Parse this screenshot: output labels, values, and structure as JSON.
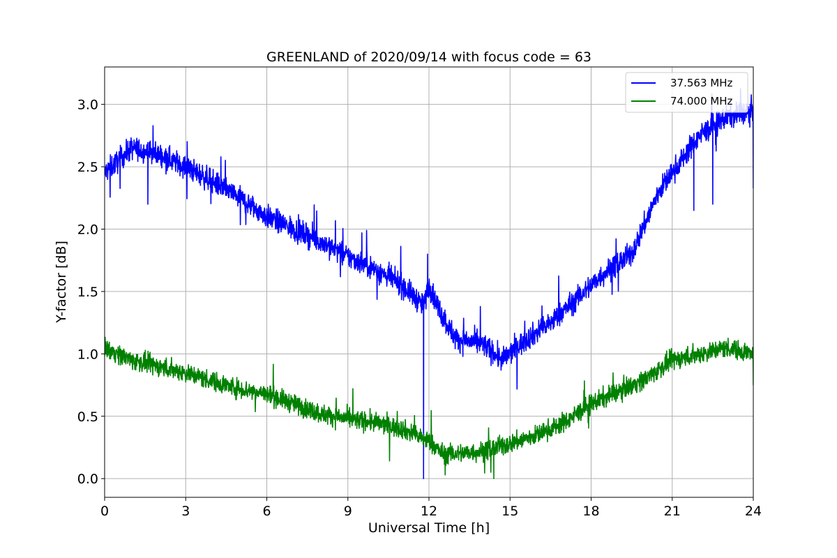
{
  "chart_data": {
    "type": "line",
    "title": "GREENLAND of 2020/09/14 with focus code = 63",
    "xlabel": "Universal Time [h]",
    "ylabel": "Y-factor [dB]",
    "xlim": [
      0,
      24
    ],
    "ylim": [
      -0.15,
      3.3
    ],
    "xticks": [
      0,
      3,
      6,
      9,
      12,
      15,
      18,
      21,
      24
    ],
    "xtick_labels": [
      "0",
      "3",
      "6",
      "9",
      "12",
      "15",
      "18",
      "21",
      "24"
    ],
    "yticks": [
      0.0,
      0.5,
      1.0,
      1.5,
      2.0,
      2.5,
      3.0
    ],
    "ytick_labels": [
      "0.0",
      "0.5",
      "1.0",
      "1.5",
      "2.0",
      "2.5",
      "3.0"
    ],
    "grid": true,
    "legend_position": "top-right",
    "series": [
      {
        "name": "37.563 MHz",
        "color": "#0000ff",
        "noise": 0.09,
        "x": [
          0,
          0.5,
          1.0,
          2.0,
          3.0,
          4.0,
          5.0,
          6.0,
          7.0,
          8.0,
          9.0,
          10.0,
          11.0,
          11.5,
          11.8,
          12.0,
          12.5,
          13.0,
          14.0,
          14.7,
          15.5,
          16.5,
          17.5,
          18.5,
          19.5,
          20.0,
          20.5,
          21.0,
          22.0,
          23.0,
          24.0
        ],
        "y": [
          2.45,
          2.55,
          2.65,
          2.6,
          2.5,
          2.38,
          2.25,
          2.1,
          2.0,
          1.9,
          1.78,
          1.68,
          1.55,
          1.45,
          1.38,
          1.55,
          1.3,
          1.12,
          1.08,
          0.95,
          1.1,
          1.25,
          1.45,
          1.65,
          1.8,
          2.05,
          2.3,
          2.45,
          2.75,
          2.9,
          2.95
        ],
        "features": [
          {
            "x": 11.8,
            "y": 0.0
          },
          {
            "x": 11.95,
            "y": 1.8
          },
          {
            "x": 1.6,
            "y": 2.2
          },
          {
            "x": 21.8,
            "y": 2.15
          },
          {
            "x": 22.5,
            "y": 2.2
          },
          {
            "x": 24.0,
            "y": 2.33
          }
        ]
      },
      {
        "name": "74.000 MHz",
        "color": "#008000",
        "noise": 0.075,
        "x": [
          0,
          1.0,
          2.0,
          3.0,
          4.0,
          5.0,
          6.0,
          7.0,
          8.0,
          9.0,
          10.0,
          11.0,
          12.0,
          12.5,
          13.0,
          14.0,
          15.0,
          16.0,
          17.0,
          18.0,
          19.0,
          20.0,
          21.0,
          22.0,
          23.0,
          24.0
        ],
        "y": [
          1.05,
          0.95,
          0.9,
          0.85,
          0.78,
          0.72,
          0.68,
          0.6,
          0.52,
          0.48,
          0.45,
          0.4,
          0.3,
          0.2,
          0.2,
          0.22,
          0.28,
          0.35,
          0.45,
          0.6,
          0.7,
          0.8,
          0.95,
          1.0,
          1.05,
          1.0
        ],
        "features": [
          {
            "x": 24.0,
            "y": 0.75
          },
          {
            "x": 12.6,
            "y": 0.03
          },
          {
            "x": 14.4,
            "y": 0.0
          }
        ]
      }
    ]
  }
}
